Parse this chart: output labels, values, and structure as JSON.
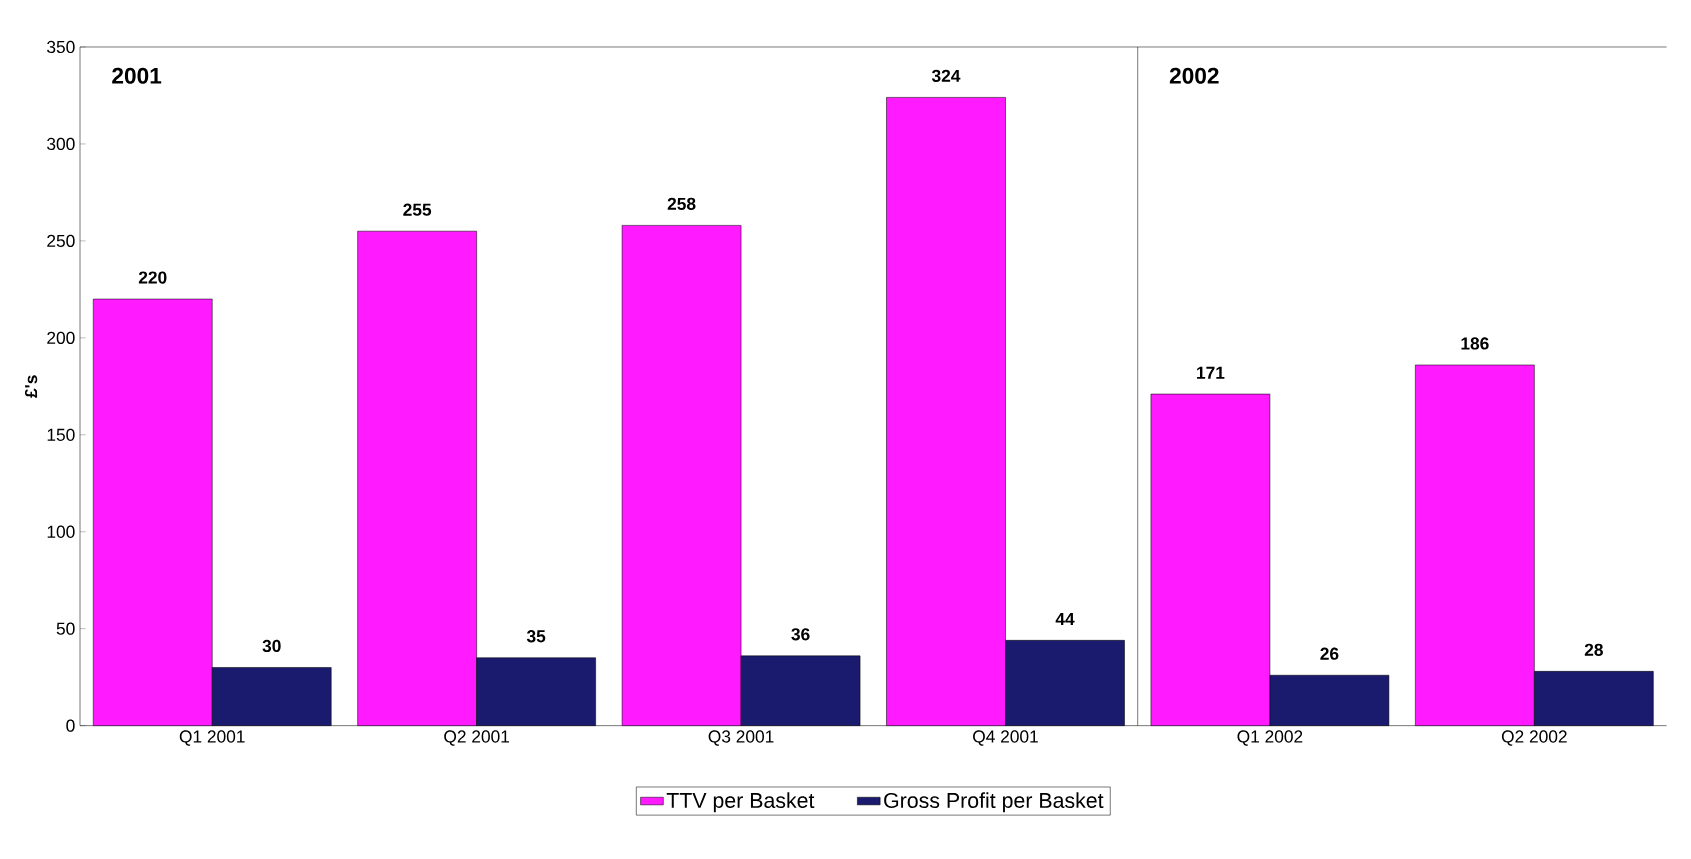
{
  "chart_data": {
    "type": "bar",
    "ylabel": "£'s",
    "categories": [
      "Q1 2001",
      "Q2 2001",
      "Q3 2001",
      "Q4 2001",
      "Q1 2002",
      "Q2 2002"
    ],
    "series": [
      {
        "name": "TTV per Basket",
        "color": "#ff1aff",
        "values": [
          220,
          255,
          258,
          324,
          171,
          186
        ]
      },
      {
        "name": "Gross Profit per Basket",
        "color": "#1a1a6e",
        "values": [
          30,
          35,
          36,
          44,
          26,
          28
        ]
      }
    ],
    "ylim": [
      0,
      350
    ],
    "yticks": [
      0,
      50,
      100,
      150,
      200,
      250,
      300,
      350
    ],
    "data_labels": true,
    "legend": "bottom",
    "grid": false,
    "annotations": [
      "2001",
      "2002"
    ]
  }
}
